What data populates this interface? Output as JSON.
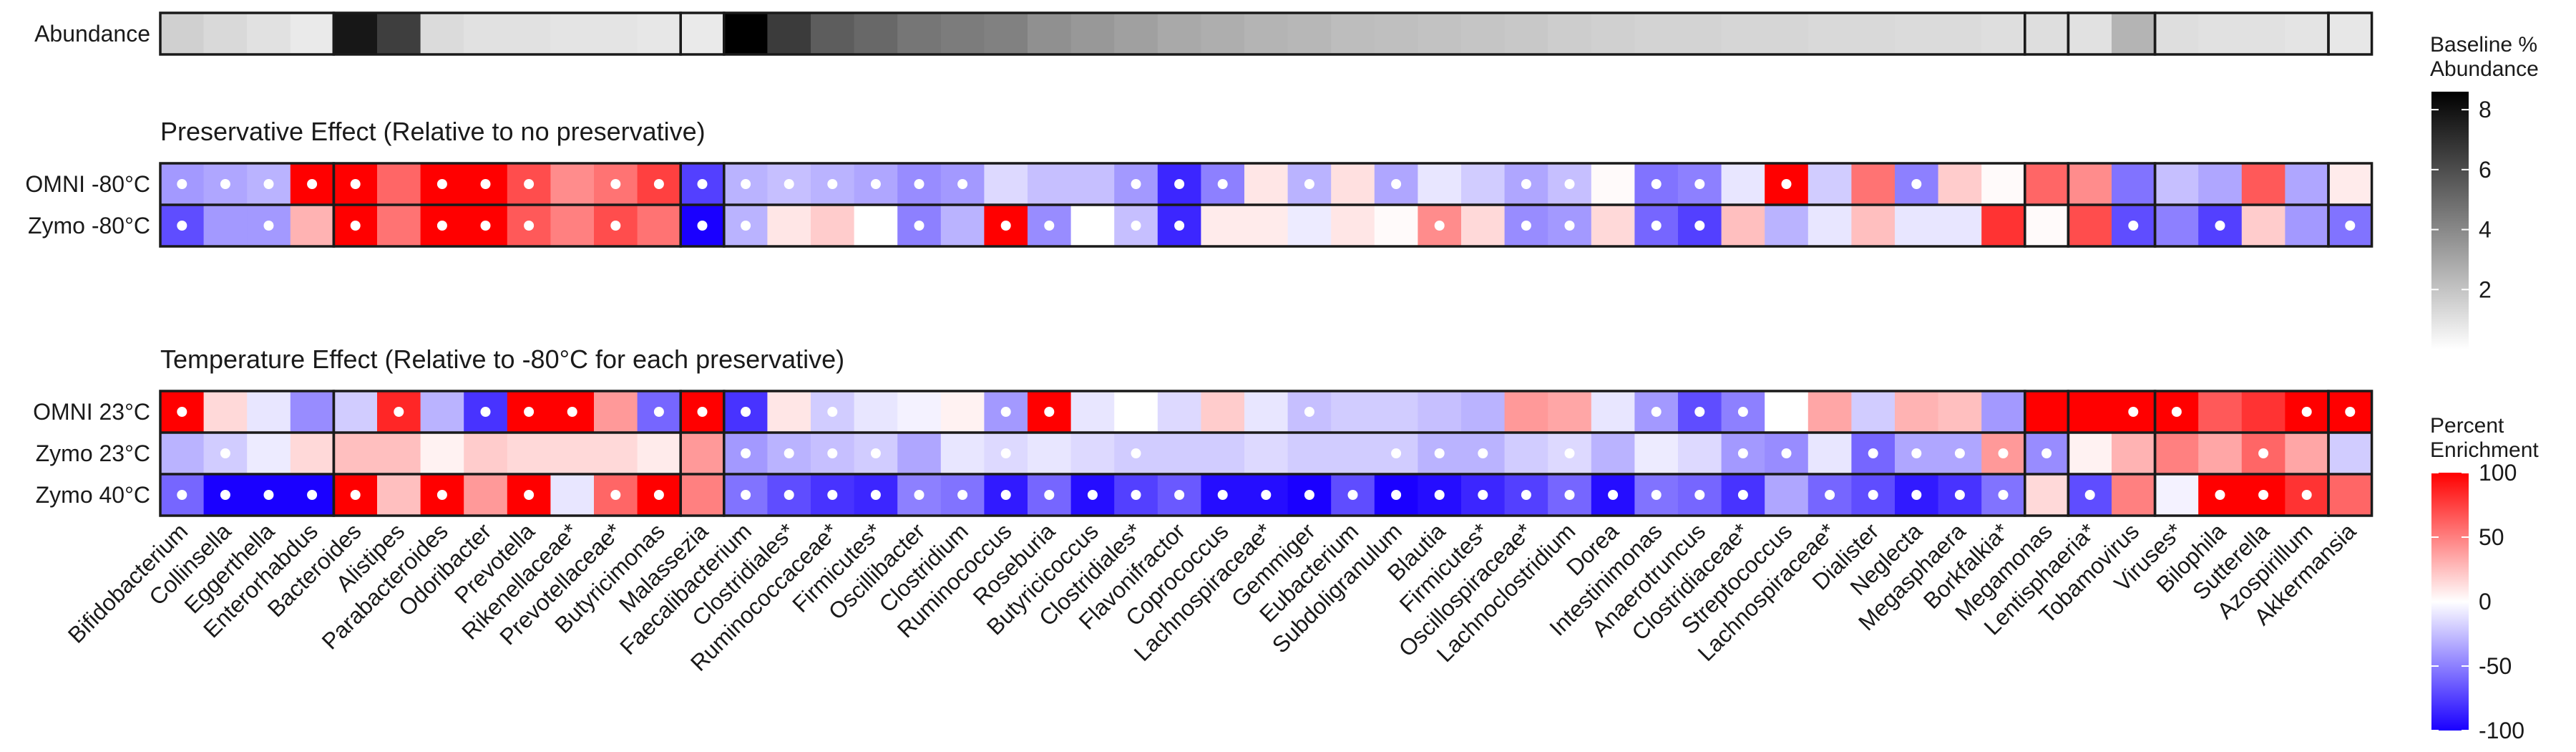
{
  "chart_data": {
    "type": "heatmap",
    "taxa": [
      "Bifidobacterium",
      "Collinsella",
      "Eggerthella",
      "Enterorhabdus",
      "Bacteroides",
      "Alistipes",
      "Parabacteroides",
      "Odoribacter",
      "Prevotella",
      "Rikenellaceae*",
      "Prevotellaceae*",
      "Butyricimonas",
      "Malassezia",
      "Faecalibacterium",
      "Clostridiales*",
      "Ruminococcaceae*",
      "Firmicutes*",
      "Oscillibacter",
      "Clostridium",
      "Ruminococcus",
      "Roseburia",
      "Butyricicoccus",
      "Clostridiales*",
      "Flavonifractor",
      "Coprococcus",
      "Lachnospiraceae*",
      "Gemmiger",
      "Eubacterium",
      "Subdoligranulum",
      "Blautia",
      "Firmicutes*",
      "Oscillospiraceae*",
      "Lachnoclostridium",
      "Dorea",
      "Intestinimonas",
      "Anaerotruncus",
      "Clostridiaceae*",
      "Streptococcus",
      "Lachnospiraceae*",
      "Dialister",
      "Neglecta",
      "Megasphaera",
      "Borkfalkia*",
      "Megamonas",
      "Lentisphaeria*",
      "Tobamovirus",
      "Viruses*",
      "Bilophila",
      "Sutterella",
      "Azospirillum",
      "Akkermansia"
    ],
    "groups": [
      4,
      8,
      1,
      30,
      1,
      2,
      4,
      1
    ],
    "abundance": {
      "label": "Abundance",
      "values": [
        1.2,
        0.9,
        0.6,
        0.3,
        7.8,
        6.4,
        0.8,
        0.6,
        0.6,
        0.5,
        0.5,
        0.4,
        0.3,
        8.6,
        6.5,
        5.3,
        4.9,
        4.4,
        4.2,
        4.0,
        3.5,
        3.2,
        2.9,
        2.6,
        2.4,
        2.2,
        2.1,
        1.9,
        1.8,
        1.7,
        1.6,
        1.5,
        1.3,
        1.2,
        1.1,
        1.1,
        1.0,
        1.0,
        0.9,
        0.9,
        0.8,
        0.8,
        0.7,
        0.7,
        0.6,
        2.2,
        0.7,
        0.6,
        0.6,
        0.5,
        0.4
      ]
    },
    "preservative_effect": {
      "title": "Preservative Effect (Relative to no preservative)",
      "rows": [
        {
          "label": "OMNI -80°C",
          "values": [
            -40,
            -35,
            -30,
            100,
            100,
            60,
            100,
            100,
            70,
            45,
            55,
            75,
            -75,
            -30,
            -25,
            -30,
            -35,
            -45,
            -40,
            -15,
            -25,
            -25,
            -40,
            -85,
            -50,
            10,
            -30,
            12,
            -35,
            -10,
            -20,
            -35,
            -25,
            2,
            -55,
            -50,
            -10,
            100,
            -20,
            55,
            -50,
            20,
            2,
            60,
            45,
            -55,
            -25,
            -35,
            65,
            -35,
            8
          ],
          "significant": [
            1,
            1,
            1,
            1,
            1,
            0,
            1,
            1,
            1,
            0,
            1,
            1,
            1,
            1,
            1,
            1,
            1,
            1,
            1,
            0,
            0,
            0,
            1,
            1,
            1,
            0,
            1,
            0,
            1,
            0,
            0,
            1,
            1,
            0,
            1,
            1,
            0,
            1,
            0,
            0,
            1,
            0,
            0,
            0,
            0,
            0,
            0,
            0,
            0,
            0,
            0
          ]
        },
        {
          "label": "Zymo -80°C",
          "values": [
            -70,
            -40,
            -40,
            30,
            100,
            55,
            100,
            100,
            65,
            50,
            70,
            55,
            -100,
            -30,
            10,
            20,
            0,
            -50,
            -30,
            100,
            -45,
            0,
            -25,
            -85,
            8,
            8,
            -8,
            10,
            2,
            45,
            15,
            -45,
            -40,
            15,
            -60,
            -75,
            25,
            -30,
            -10,
            25,
            -10,
            -10,
            80,
            2,
            70,
            -70,
            -50,
            -75,
            20,
            -40,
            -55
          ],
          "significant": [
            1,
            0,
            1,
            0,
            1,
            0,
            1,
            1,
            1,
            0,
            1,
            0,
            1,
            1,
            0,
            0,
            0,
            1,
            0,
            1,
            1,
            0,
            1,
            1,
            0,
            0,
            0,
            0,
            0,
            1,
            0,
            1,
            1,
            0,
            1,
            1,
            0,
            0,
            0,
            0,
            0,
            0,
            0,
            0,
            0,
            1,
            0,
            1,
            0,
            0,
            1
          ]
        }
      ]
    },
    "temperature_effect": {
      "title": "Temperature Effect (Relative to -80°C for each preservative)",
      "rows": [
        {
          "label": "OMNI 23°C",
          "values": [
            100,
            15,
            -10,
            -45,
            -20,
            85,
            -30,
            -80,
            100,
            100,
            40,
            -60,
            100,
            -80,
            10,
            -20,
            -10,
            -5,
            5,
            -40,
            100,
            -10,
            0,
            -15,
            20,
            -10,
            -25,
            -20,
            -20,
            -25,
            -30,
            40,
            35,
            -10,
            -40,
            -70,
            -50,
            0,
            35,
            -20,
            30,
            25,
            -40,
            100,
            100,
            100,
            100,
            65,
            80,
            100,
            100
          ],
          "significant": [
            1,
            0,
            0,
            0,
            0,
            1,
            0,
            1,
            1,
            1,
            0,
            1,
            1,
            1,
            0,
            1,
            0,
            0,
            0,
            1,
            1,
            0,
            0,
            0,
            0,
            0,
            1,
            0,
            0,
            0,
            0,
            0,
            0,
            0,
            1,
            1,
            1,
            0,
            0,
            0,
            0,
            0,
            0,
            0,
            0,
            1,
            1,
            0,
            0,
            1,
            1
          ]
        },
        {
          "label": "Zymo 23°C",
          "values": [
            -30,
            -20,
            -8,
            15,
            25,
            25,
            5,
            20,
            15,
            15,
            15,
            8,
            40,
            -40,
            -30,
            -25,
            -20,
            -35,
            -10,
            -15,
            -10,
            -15,
            -20,
            -20,
            -20,
            -15,
            -20,
            -20,
            -20,
            -30,
            -30,
            -20,
            -15,
            -30,
            -8,
            -15,
            -40,
            -45,
            -10,
            -60,
            -35,
            -35,
            40,
            -45,
            5,
            30,
            50,
            35,
            60,
            35,
            -20
          ],
          "significant": [
            0,
            1,
            0,
            0,
            0,
            0,
            0,
            0,
            0,
            0,
            0,
            0,
            0,
            1,
            1,
            1,
            1,
            0,
            0,
            1,
            0,
            0,
            1,
            0,
            0,
            0,
            0,
            0,
            1,
            1,
            1,
            0,
            1,
            0,
            0,
            0,
            1,
            1,
            0,
            1,
            1,
            1,
            1,
            1,
            0,
            0,
            0,
            0,
            1,
            0,
            0
          ]
        },
        {
          "label": "Zymo 40°C",
          "values": [
            -60,
            -100,
            -100,
            -100,
            100,
            25,
            100,
            40,
            100,
            -10,
            60,
            100,
            50,
            -55,
            -70,
            -80,
            -85,
            -50,
            -55,
            -90,
            -60,
            -95,
            -75,
            -65,
            -95,
            -95,
            -100,
            -70,
            -100,
            -95,
            -85,
            -75,
            -60,
            -95,
            -55,
            -60,
            -80,
            -35,
            -60,
            -70,
            -90,
            -80,
            -55,
            15,
            -70,
            50,
            -5,
            100,
            100,
            80,
            60
          ],
          "significant": [
            1,
            1,
            1,
            1,
            1,
            0,
            1,
            0,
            1,
            0,
            1,
            1,
            0,
            1,
            1,
            1,
            1,
            1,
            1,
            1,
            1,
            1,
            1,
            1,
            1,
            1,
            1,
            1,
            1,
            1,
            1,
            1,
            1,
            1,
            1,
            1,
            1,
            0,
            1,
            1,
            1,
            1,
            1,
            0,
            1,
            0,
            0,
            1,
            1,
            1,
            0
          ]
        }
      ]
    },
    "legends": {
      "abundance": {
        "title": [
          "Baseline %",
          "Abundance"
        ],
        "ticks": [
          "2",
          "4",
          "6",
          "8"
        ],
        "tick_values": [
          2,
          4,
          6,
          8
        ],
        "range": [
          0,
          8.6
        ]
      },
      "enrichment": {
        "title": [
          "Percent",
          "Enrichment"
        ],
        "ticks": [
          "100",
          "50",
          "0",
          "-50",
          "-100"
        ],
        "tick_values": [
          100,
          50,
          0,
          -50,
          -100
        ],
        "range": [
          -100,
          100
        ]
      }
    },
    "colors": {
      "low": "#1a00ff",
      "mid": "#ffffff",
      "high": "#ff0000",
      "abundance_low": "#ffffff",
      "abundance_high": "#000000",
      "border": "#1a1a1a",
      "dot": "#ffffff"
    }
  }
}
